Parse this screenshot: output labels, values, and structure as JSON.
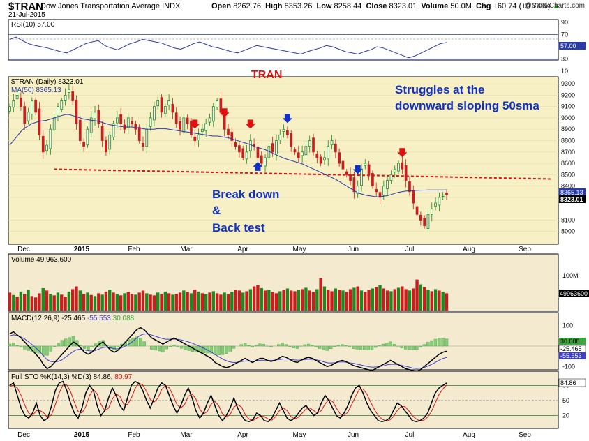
{
  "header": {
    "symbol": "$TRAN",
    "name": "Dow Jones Transportation Average INDX",
    "date": "21-Jul-2015",
    "open_label": "Open",
    "open": "8262.76",
    "high_label": "High",
    "high": "8353.26",
    "low_label": "Low",
    "low": "8258.44",
    "close_label": "Close",
    "close": "8323.01",
    "volume_label": "Volume",
    "volume": "50.0M",
    "chg_label": "Chg",
    "chg": "+60.74 (+0.74%)",
    "chg_arrow": "▲",
    "watermark": "@StockCharts.com"
  },
  "colors": {
    "price_bg": "#f6f0c4",
    "panel_bg": "#f3ead0",
    "up": "#1c8a1c",
    "down": "#c81e1e",
    "ma": "#2a3aa8",
    "annotation_blue": "#1030c8",
    "annotation_red": "#e01010",
    "support_line": "#e01010"
  },
  "annotations": {
    "title": "TRAN",
    "struggles_line1": "Struggles at the",
    "struggles_line2": "downward sloping 50sma",
    "break_line1": "Break down",
    "break_line2": "&",
    "break_line3": "Back test"
  },
  "chart_data": [
    {
      "type": "line",
      "panel": "rsi",
      "legend": "RSI(10) 57.00",
      "ylim": [
        10,
        90
      ],
      "tick_labels": [
        "90",
        "70",
        "50",
        "30",
        "10"
      ],
      "current_label": "57.00",
      "reference_levels": [
        70,
        30
      ],
      "values": [
        62,
        66,
        60,
        55,
        52,
        50,
        48,
        45,
        42,
        40,
        45,
        50,
        55,
        58,
        60,
        52,
        48,
        45,
        50,
        55,
        58,
        62,
        60,
        58,
        56,
        52,
        48,
        46,
        50,
        55,
        58,
        54,
        50,
        48,
        45,
        42,
        40,
        44,
        48,
        52,
        50,
        48,
        46,
        44,
        42,
        40,
        38,
        42,
        45,
        48,
        52,
        50,
        46,
        42,
        40,
        38,
        42,
        45,
        50,
        48,
        44,
        40,
        36,
        32,
        35,
        40,
        45,
        50,
        55,
        57
      ]
    },
    {
      "type": "candlestick",
      "panel": "price",
      "legend_symbol": "$TRAN (Daily) 8323.01",
      "legend_ma": "MA(50) 8365.13",
      "ylim": [
        7900,
        9350
      ],
      "y_tick_labels": [
        "9300",
        "9200",
        "9100",
        "9000",
        "8900",
        "8800",
        "8700",
        "8600",
        "8500",
        "8400",
        "8300",
        "8100",
        "8000"
      ],
      "x_tick_labels": [
        "Dec",
        "2015",
        "Feb",
        "Mar",
        "Apr",
        "May",
        "Jun",
        "Jul",
        "Aug",
        "Sep"
      ],
      "last_close_label": "8323.01",
      "ma_label": "8365.13",
      "support_level": 8530,
      "closes": [
        9100,
        9150,
        9200,
        9100,
        8950,
        9050,
        9150,
        9050,
        8850,
        8700,
        8760,
        8900,
        9000,
        9100,
        9150,
        9200,
        9250,
        9150,
        8950,
        8800,
        8750,
        8900,
        9000,
        9050,
        8950,
        8800,
        8700,
        8850,
        8950,
        9000,
        8950,
        8900,
        9000,
        8950,
        8900,
        8800,
        8750,
        8900,
        9000,
        9100,
        9150,
        9050,
        9100,
        9150,
        9050,
        8950,
        8900,
        9000,
        8950,
        8850,
        8800,
        8850,
        8900,
        8950,
        9000,
        9100,
        9150,
        9050,
        8900,
        8850,
        8800,
        8750,
        8700,
        8650,
        8700,
        8800,
        8750,
        8650,
        8600,
        8650,
        8750,
        8700,
        8800,
        8850,
        8900,
        8850,
        8750,
        8700,
        8650,
        8700,
        8750,
        8800,
        8700,
        8650,
        8600,
        8650,
        8750,
        8800,
        8700,
        8600,
        8550,
        8500,
        8450,
        8350,
        8400,
        8550,
        8600,
        8500,
        8400,
        8350,
        8300,
        8400,
        8450,
        8500,
        8550,
        8600,
        8550,
        8450,
        8350,
        8250,
        8150,
        8100,
        8050,
        8150,
        8200,
        8250,
        8300,
        8310,
        8323
      ],
      "ma_values": [
        8760,
        8800,
        8840,
        8880,
        8910,
        8930,
        8950,
        8960,
        8970,
        8975,
        8980,
        8990,
        9000,
        9010,
        9020,
        9030,
        9030,
        9020,
        9010,
        9000,
        8990,
        8985,
        8980,
        8975,
        8970,
        8960,
        8950,
        8940,
        8935,
        8930,
        8925,
        8920,
        8920,
        8920,
        8915,
        8910,
        8905,
        8900,
        8900,
        8900,
        8905,
        8905,
        8905,
        8900,
        8895,
        8890,
        8885,
        8880,
        8875,
        8870,
        8865,
        8860,
        8855,
        8850,
        8845,
        8840,
        8840,
        8835,
        8830,
        8825,
        8815,
        8805,
        8795,
        8785,
        8775,
        8765,
        8750,
        8740,
        8730,
        8720,
        8705,
        8690,
        8675,
        8660,
        8645,
        8635,
        8625,
        8615,
        8605,
        8595,
        8580,
        8565,
        8550,
        8535,
        8520,
        8505,
        8490,
        8475,
        8460,
        8440,
        8420,
        8400,
        8380,
        8360,
        8340,
        8330,
        8320,
        8315,
        8310,
        8305,
        8305,
        8310,
        8315,
        8325,
        8335,
        8345,
        8350,
        8355,
        8358,
        8360,
        8362,
        8363,
        8364,
        8365,
        8365,
        8365,
        8365,
        8365,
        8365.13
      ],
      "red_arrows": [
        50,
        58,
        65,
        106
      ],
      "blue_arrows_down": [
        75,
        94
      ],
      "blue_arrows_up": [
        67
      ]
    },
    {
      "type": "bar",
      "panel": "volume",
      "legend": "Volume 49,963,600",
      "tick_labels": [
        "100M"
      ],
      "current_label": "49963600",
      "ylim": [
        0,
        140
      ],
      "values": [
        52,
        45,
        40,
        55,
        48,
        60,
        42,
        38,
        50,
        65,
        58,
        48,
        44,
        52,
        46,
        40,
        55,
        62,
        70,
        58,
        48,
        52,
        45,
        42,
        50,
        46,
        55,
        60,
        52,
        48,
        44,
        50,
        54,
        48,
        46,
        52,
        58,
        50,
        46,
        44,
        52,
        48,
        55,
        50,
        46,
        48,
        52,
        58,
        54,
        50,
        60,
        55,
        50,
        48,
        52,
        56,
        50,
        46,
        52,
        48,
        54,
        60,
        58,
        52,
        56,
        62,
        70,
        75,
        65,
        58,
        60,
        54,
        50,
        56,
        60,
        64,
        58,
        56,
        60,
        62,
        66,
        58,
        54,
        62,
        95,
        70,
        60,
        56,
        64,
        60,
        58,
        54,
        62,
        66,
        70,
        58,
        54,
        60,
        64,
        68,
        74,
        64,
        58,
        56,
        62,
        66,
        70,
        62,
        58,
        64,
        90,
        76,
        68,
        60,
        56,
        62,
        58,
        54,
        50
      ],
      "up_days": [
        1,
        3,
        5,
        9,
        11,
        13,
        16,
        19,
        21,
        23,
        25,
        27,
        29,
        31,
        34,
        37,
        40,
        42,
        44,
        47,
        49,
        51,
        53,
        55,
        58,
        60,
        63,
        65,
        68,
        70,
        73,
        75,
        78,
        80,
        83,
        85,
        88,
        90,
        93,
        95,
        98,
        100,
        103,
        105,
        108,
        111,
        113,
        115,
        117
      ]
    },
    {
      "type": "line",
      "panel": "macd",
      "legend_macd": "MACD(12,26,9)",
      "legend_macd_value": "-25.465",
      "legend_signal_value": "-55.553",
      "legend_hist_value": "30.088",
      "tick_labels": [
        "100",
        "0",
        "-100"
      ],
      "ylim": [
        -150,
        150
      ],
      "value_labels": [
        "30.088",
        "-25.465",
        "-55.553"
      ],
      "macd": [
        60,
        70,
        55,
        40,
        20,
        0,
        -20,
        -40,
        -60,
        -90,
        -110,
        -100,
        -80,
        -60,
        -40,
        -20,
        0,
        20,
        10,
        -10,
        -30,
        -40,
        -30,
        -10,
        10,
        20,
        0,
        -20,
        -30,
        -20,
        0,
        20,
        40,
        60,
        80,
        90,
        80,
        60,
        40,
        30,
        20,
        10,
        20,
        30,
        40,
        30,
        20,
        10,
        0,
        -10,
        -20,
        -30,
        -40,
        -50,
        -60,
        -80,
        -90,
        -100,
        -105,
        -100,
        -90,
        -80,
        -70,
        -60,
        -70,
        -80,
        -70,
        -60,
        -60,
        -70,
        -75,
        -70,
        -60,
        -50,
        -55,
        -65,
        -75,
        -80,
        -70,
        -60,
        -55,
        -60,
        -70,
        -80,
        -90,
        -100,
        -95,
        -85,
        -75,
        -70,
        -75,
        -85,
        -95,
        -100,
        -105,
        -110,
        -115,
        -120,
        -110,
        -100,
        -90,
        -80,
        -70,
        -80,
        -90,
        -100,
        -110,
        -115,
        -120,
        -125,
        -115,
        -100,
        -85,
        -70,
        -55,
        -40,
        -30,
        -25
      ],
      "signal": [
        50,
        55,
        52,
        45,
        35,
        22,
        8,
        -8,
        -25,
        -45,
        -65,
        -75,
        -78,
        -75,
        -68,
        -55,
        -42,
        -28,
        -18,
        -15,
        -18,
        -22,
        -24,
        -22,
        -15,
        -8,
        -5,
        -8,
        -12,
        -14,
        -10,
        -2,
        8,
        20,
        35,
        50,
        58,
        60,
        56,
        50,
        44,
        38,
        34,
        33,
        34,
        34,
        31,
        27,
        22,
        16,
        9,
        1,
        -7,
        -16,
        -25,
        -36,
        -47,
        -58,
        -68,
        -75,
        -79,
        -80,
        -78,
        -74,
        -73,
        -74,
        -74,
        -71,
        -69,
        -69,
        -70,
        -70,
        -68,
        -65,
        -63,
        -63,
        -66,
        -68,
        -69,
        -67,
        -65,
        -64,
        -65,
        -68,
        -72,
        -78,
        -82,
        -82,
        -81,
        -78,
        -77,
        -79,
        -82,
        -85,
        -89,
        -93,
        -97,
        -101,
        -103,
        -102,
        -100,
        -96,
        -91,
        -89,
        -89,
        -91,
        -95,
        -99,
        -103,
        -108,
        -109,
        -108,
        -104,
        -97,
        -89,
        -79,
        -69,
        -60,
        -55.553
      ]
    },
    {
      "type": "line",
      "panel": "stochastic",
      "legend_k": "Full STO %K(14,3) %D(3) 84.86,",
      "legend_d": "80.97",
      "tick_labels": [
        "80",
        "50",
        "20"
      ],
      "current_label": "84.86",
      "ylim": [
        0,
        100
      ],
      "reference_levels": [
        80,
        50,
        20
      ],
      "k": [
        80,
        85,
        60,
        35,
        20,
        15,
        25,
        45,
        20,
        10,
        15,
        40,
        70,
        85,
        88,
        70,
        45,
        25,
        15,
        35,
        65,
        80,
        70,
        40,
        20,
        30,
        55,
        75,
        60,
        40,
        30,
        55,
        80,
        88,
        84,
        70,
        50,
        35,
        55,
        75,
        85,
        80,
        60,
        40,
        25,
        40,
        60,
        75,
        55,
        30,
        15,
        25,
        45,
        60,
        40,
        20,
        10,
        20,
        35,
        55,
        35,
        20,
        10,
        8,
        12,
        25,
        20,
        10,
        8,
        15,
        30,
        45,
        30,
        15,
        10,
        15,
        25,
        35,
        40,
        30,
        20,
        25,
        45,
        60,
        50,
        35,
        20,
        15,
        25,
        40,
        60,
        75,
        80,
        65,
        45,
        30,
        20,
        10,
        8,
        10,
        15,
        30,
        45,
        40,
        30,
        20,
        10,
        8,
        10,
        15,
        25,
        45,
        65,
        75,
        80,
        84.86
      ],
      "d": [
        78,
        80,
        75,
        60,
        40,
        25,
        20,
        30,
        30,
        25,
        15,
        22,
        42,
        65,
        81,
        81,
        68,
        47,
        28,
        25,
        38,
        60,
        72,
        63,
        43,
        30,
        35,
        53,
        63,
        58,
        43,
        42,
        55,
        74,
        84,
        81,
        68,
        52,
        47,
        55,
        72,
        80,
        75,
        60,
        42,
        35,
        42,
        58,
        63,
        53,
        33,
        23,
        28,
        43,
        48,
        40,
        23,
        17,
        22,
        37,
        42,
        37,
        22,
        13,
        10,
        15,
        19,
        18,
        13,
        11,
        18,
        30,
        35,
        30,
        18,
        13,
        17,
        25,
        33,
        35,
        30,
        25,
        30,
        43,
        52,
        48,
        35,
        23,
        20,
        27,
        42,
        58,
        72,
        73,
        63,
        47,
        32,
        20,
        13,
        9,
        11,
        18,
        30,
        38,
        38,
        30,
        20,
        13,
        9,
        11,
        17,
        28,
        45,
        62,
        73,
        80.97
      ]
    }
  ]
}
